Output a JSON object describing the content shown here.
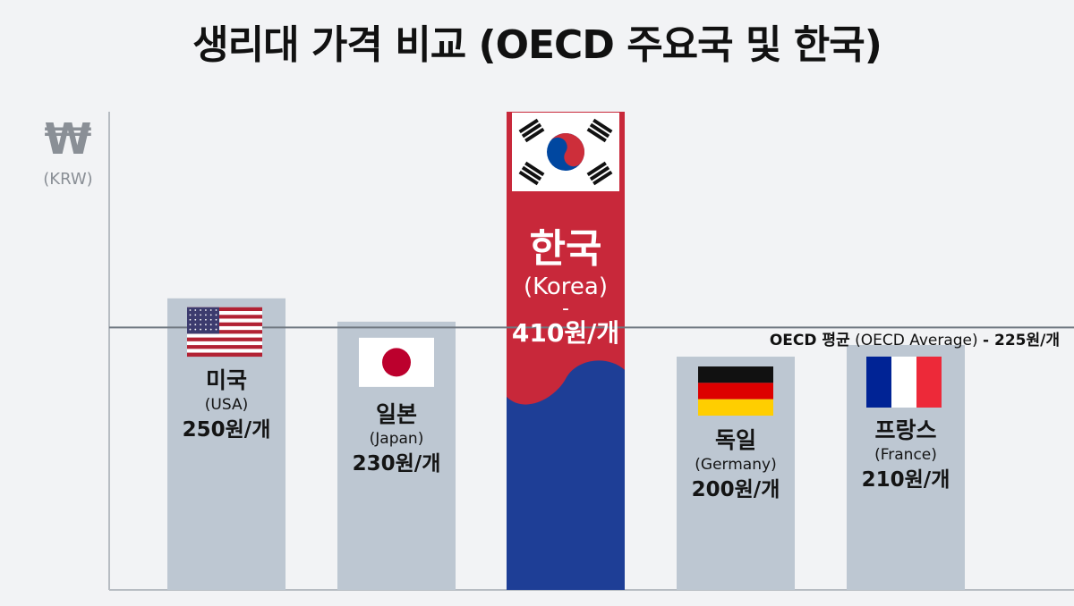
{
  "title": "생리대 가격 비교 (OECD 주요국 및 한국)",
  "unit": {
    "symbol": "₩",
    "label": "(KRW)"
  },
  "average": {
    "name_ko": "OECD 평균",
    "name_en": "(OECD Average)",
    "value_label": "- 225원/개"
  },
  "chart_data": {
    "type": "bar",
    "categories": [
      "미국",
      "일본",
      "한국",
      "독일",
      "프랑스"
    ],
    "categories_en": [
      "(USA)",
      "(Japan)",
      "(Korea)",
      "(Germany)",
      "(France)"
    ],
    "values": [
      250,
      230,
      410,
      200,
      210
    ],
    "value_labels": [
      "250원/개",
      "230원/개",
      "410원/개",
      "200원/개",
      "210원/개"
    ],
    "reference_line": {
      "value": 225
    },
    "ylim": [
      0,
      410
    ],
    "grid": false,
    "colors": {
      "bar": "#bdc7d2",
      "highlight_top": "#c8283a",
      "highlight_bottom": "#1e3e96",
      "axis": "#b7bcc2",
      "avg_line": "#6f7780"
    },
    "flags": [
      "us-flag-icon",
      "japan-flag-icon",
      "korea-flag-icon",
      "germany-flag-icon",
      "france-flag-icon"
    ]
  }
}
